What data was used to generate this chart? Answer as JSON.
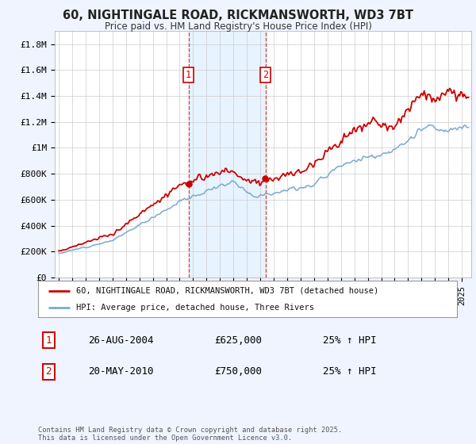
{
  "title": "60, NIGHTINGALE ROAD, RICKMANSWORTH, WD3 7BT",
  "subtitle": "Price paid vs. HM Land Registry's House Price Index (HPI)",
  "legend_entry1": "60, NIGHTINGALE ROAD, RICKMANSWORTH, WD3 7BT (detached house)",
  "legend_entry2": "HPI: Average price, detached house, Three Rivers",
  "transaction1_date": "26-AUG-2004",
  "transaction1_price": "£625,000",
  "transaction1_hpi": "25% ↑ HPI",
  "transaction2_date": "20-MAY-2010",
  "transaction2_price": "£750,000",
  "transaction2_hpi": "25% ↑ HPI",
  "footer": "Contains HM Land Registry data © Crown copyright and database right 2025.\nThis data is licensed under the Open Government Licence v3.0.",
  "property_color": "#cc0000",
  "hpi_color": "#7aaad0",
  "vline1_x": 2004.65,
  "vline2_x": 2010.38,
  "ylim": [
    0,
    1900000
  ],
  "xlim_start": 1994.7,
  "xlim_end": 2025.7,
  "yticks": [
    0,
    200000,
    400000,
    600000,
    800000,
    1000000,
    1200000,
    1400000,
    1600000,
    1800000
  ],
  "ytick_labels": [
    "£0",
    "£200K",
    "£400K",
    "£600K",
    "£800K",
    "£1M",
    "£1.2M",
    "£1.4M",
    "£1.6M",
    "£1.8M"
  ],
  "xticks": [
    1995,
    1996,
    1997,
    1998,
    1999,
    2000,
    2001,
    2002,
    2003,
    2004,
    2005,
    2006,
    2007,
    2008,
    2009,
    2010,
    2011,
    2012,
    2013,
    2014,
    2015,
    2016,
    2017,
    2018,
    2019,
    2020,
    2021,
    2022,
    2023,
    2024,
    2025
  ],
  "background_color": "#f0f4ff",
  "plot_bg": "#ffffff",
  "span_color": "#ddeeff",
  "marker_y": 1560000
}
